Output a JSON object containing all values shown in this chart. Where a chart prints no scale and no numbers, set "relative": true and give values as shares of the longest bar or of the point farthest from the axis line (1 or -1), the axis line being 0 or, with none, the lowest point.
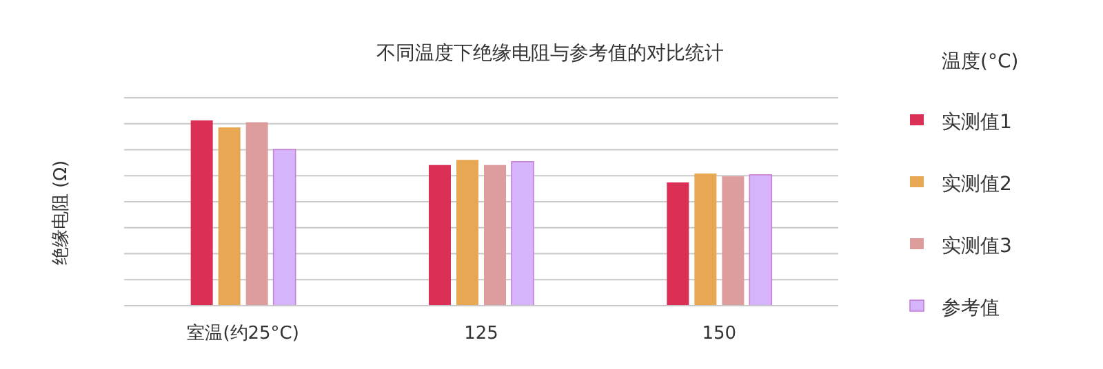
{
  "chart_data": {
    "type": "bar",
    "title": "不同温度下绝缘电阻与参考值的对比统计",
    "ylabel": "绝缘电阻 (Ω)",
    "legend_title": "温度(°C)",
    "relative": true,
    "grid": "y",
    "legend": "right",
    "categories": [
      "室温(约25°C)",
      "125",
      "150"
    ],
    "series": [
      {
        "name": "实测值1",
        "color": "#dc2f55",
        "values": [
          1,
          0.759,
          0.665
        ]
      },
      {
        "name": "实测值2",
        "color": "#e8a853",
        "values": [
          0.962,
          0.787,
          0.713
        ]
      },
      {
        "name": "实测值3",
        "color": "#de9d9d",
        "values": [
          0.99,
          0.759,
          0.698
        ]
      },
      {
        "name": "参考值",
        "color": "#d6b4fc",
        "values": [
          0.843,
          0.777,
          0.706
        ]
      }
    ]
  }
}
